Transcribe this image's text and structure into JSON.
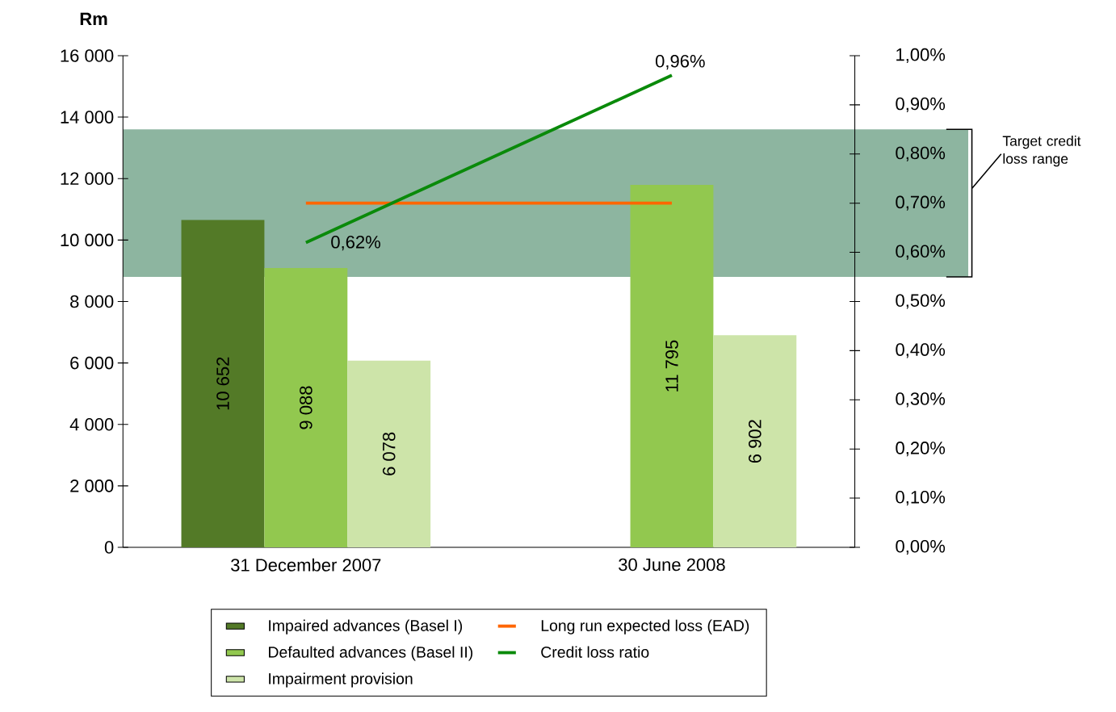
{
  "chart_data": {
    "type": "bar",
    "ylabel": "Rm",
    "categories": [
      "31 December 2007",
      "30 June 2008"
    ],
    "series": [
      {
        "name": "Impaired advances  (Basel I)",
        "color": "#537a27",
        "values": [
          10652,
          null
        ],
        "value_labels": [
          "10 652",
          null
        ]
      },
      {
        "name": "Defaulted advances  (Basel II)",
        "color": "#92c84f",
        "values": [
          9088,
          11795
        ],
        "value_labels": [
          "9 088",
          "11 795"
        ]
      },
      {
        "name": "Impairment provision",
        "color": "#cde4a9",
        "values": [
          6078,
          6902
        ],
        "value_labels": [
          "6 078",
          "6 902"
        ]
      },
      {
        "name": "Long run expected loss  (EAD)",
        "type": "line",
        "axis": "y2",
        "color": "#ff6600",
        "values": [
          0.7,
          0.7
        ]
      },
      {
        "name": "Credit loss ratio",
        "type": "line",
        "axis": "y2",
        "color": "#0a8a0a",
        "values": [
          0.62,
          0.96
        ],
        "value_labels": [
          "0,62%",
          "0,96%"
        ]
      }
    ],
    "ylim": [
      0,
      16000
    ],
    "yticks": [
      0,
      {
        "value": 2000,
        "label": "2 000"
      },
      {
        "value": 4000,
        "label": "4 000"
      },
      {
        "value": 6000,
        "label": "6 000"
      },
      {
        "value": 8000,
        "label": "8 000"
      },
      {
        "value": 10000,
        "label": "10 000"
      },
      {
        "value": 12000,
        "label": "12 000"
      },
      {
        "value": 14000,
        "label": "14 000"
      },
      {
        "value": 16000,
        "label": "16 000"
      }
    ],
    "y2lim": [
      0,
      1
    ],
    "y2ticks": [
      {
        "value": 0,
        "label": "0,00%"
      },
      {
        "value": 0.1,
        "label": "0,10%"
      },
      {
        "value": 0.2,
        "label": "0,20%"
      },
      {
        "value": 0.3,
        "label": "0,30%"
      },
      {
        "value": 0.4,
        "label": "0,40%"
      },
      {
        "value": 0.5,
        "label": "0,50%"
      },
      {
        "value": 0.6,
        "label": "0,60%"
      },
      {
        "value": 0.7,
        "label": "0,70%"
      },
      {
        "value": 0.8,
        "label": "0,80%"
      },
      {
        "value": 0.9,
        "label": "0,90%"
      },
      {
        "value": 1.0,
        "label": "1,00%"
      }
    ],
    "bands": [
      {
        "axis": "y2",
        "from": 0.55,
        "to": 0.85,
        "label": "Target credit loss range",
        "color": "#8db5a0"
      }
    ],
    "legend": "bottom"
  }
}
